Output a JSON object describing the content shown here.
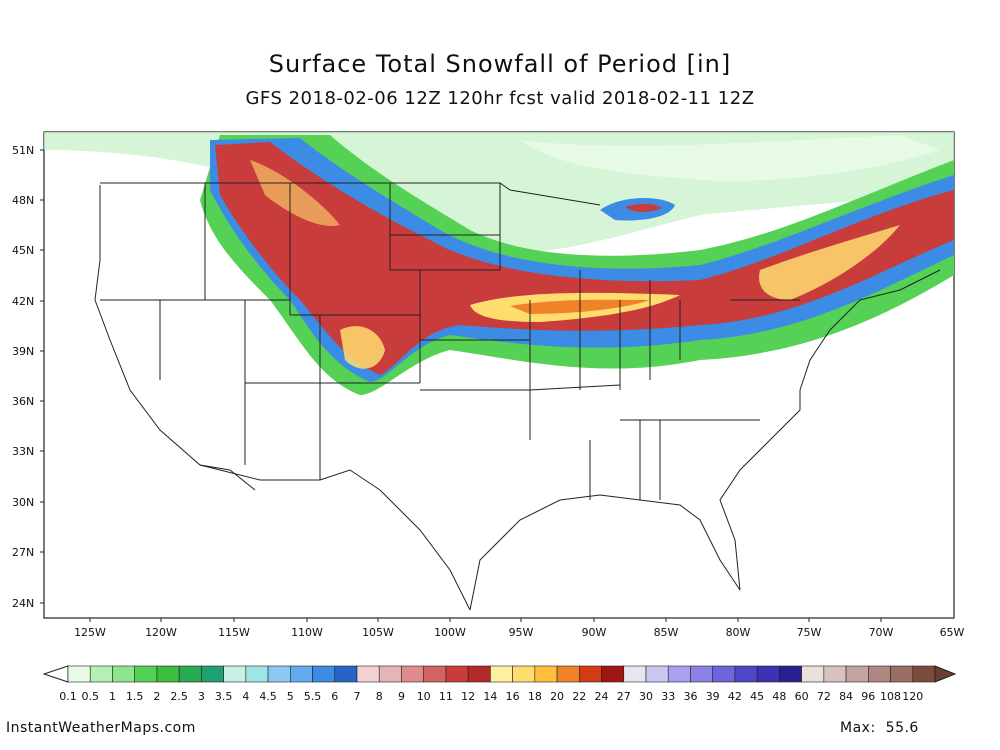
{
  "title": "Surface Total Snowfall of Period [in]",
  "subtitle": "GFS 2018-02-06 12Z 120hr fcst valid 2018-02-11 12Z",
  "lat_labels": [
    "51N",
    "48N",
    "45N",
    "42N",
    "39N",
    "36N",
    "33N",
    "30N",
    "27N",
    "24N"
  ],
  "lon_labels": [
    "125W",
    "120W",
    "115W",
    "110W",
    "105W",
    "100W",
    "95W",
    "90W",
    "85W",
    "80W",
    "75W",
    "70W",
    "65W"
  ],
  "colorbar": {
    "labels": [
      "0.1",
      "0.5",
      "1",
      "1.5",
      "2",
      "2.5",
      "3",
      "3.5",
      "4",
      "4.5",
      "5",
      "5.5",
      "6",
      "7",
      "8",
      "9",
      "10",
      "11",
      "12",
      "14",
      "16",
      "18",
      "20",
      "22",
      "24",
      "27",
      "30",
      "33",
      "36",
      "39",
      "42",
      "45",
      "48",
      "60",
      "72",
      "84",
      "96",
      "108",
      "120"
    ],
    "colors": [
      "#e6fae6",
      "#b4f0b4",
      "#8ce68c",
      "#55d255",
      "#3cbe3c",
      "#28aa50",
      "#20a070",
      "#c8f0e6",
      "#9ee6e6",
      "#8cc8f0",
      "#64aaf0",
      "#3c8ce6",
      "#2864c8",
      "#f0d2d2",
      "#e6b4b4",
      "#e08c8c",
      "#d26464",
      "#c83c3c",
      "#b42828",
      "#fff0a0",
      "#ffdc6e",
      "#ffbe3c",
      "#f08228",
      "#d23c14",
      "#a01414",
      "#e6e6f0",
      "#c8c8f0",
      "#aaa0f0",
      "#8c82e6",
      "#6e64dc",
      "#5046c8",
      "#3c32b4",
      "#28208c",
      "#ebe1dc",
      "#d7c3be",
      "#c3a5a0",
      "#af8782",
      "#9b6e64",
      "#7d4b3c"
    ]
  },
  "credit": "InstantWeatherMaps.com",
  "max": {
    "label": "Max:",
    "value": "55.6"
  }
}
